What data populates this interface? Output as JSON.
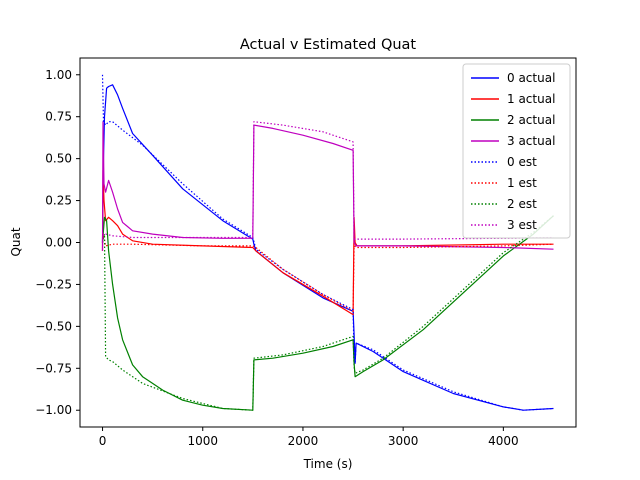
{
  "chart_data": {
    "type": "line",
    "title": "Actual v Estimated Quat",
    "xlabel": "Time (s)",
    "ylabel": "Quat",
    "xlim": [
      -225,
      4725
    ],
    "ylim": [
      -1.1,
      1.1
    ],
    "x_ticks": [
      0,
      1000,
      2000,
      3000,
      4000
    ],
    "y_ticks": [
      1.0,
      0.75,
      0.5,
      0.25,
      0.0,
      -0.25,
      -0.5,
      -0.75,
      -1.0
    ],
    "x_tick_labels": [
      "0",
      "1000",
      "2000",
      "3000",
      "4000"
    ],
    "y_tick_labels": [
      "1.00",
      "0.75",
      "0.50",
      "0.25",
      "0.00",
      "−0.25",
      "−0.50",
      "−0.75",
      "−1.00"
    ],
    "grid": false,
    "legend_position": "top-right",
    "series": [
      {
        "name": "0 actual",
        "color": "#0000ff",
        "style": "solid",
        "points": [
          [
            0,
            0.0
          ],
          [
            10,
            0.5
          ],
          [
            20,
            0.75
          ],
          [
            40,
            0.92
          ],
          [
            60,
            0.93
          ],
          [
            100,
            0.94
          ],
          [
            150,
            0.88
          ],
          [
            200,
            0.8
          ],
          [
            300,
            0.65
          ],
          [
            500,
            0.52
          ],
          [
            800,
            0.32
          ],
          [
            1200,
            0.13
          ],
          [
            1500,
            0.02
          ],
          [
            1510,
            -0.01
          ],
          [
            1530,
            -0.05
          ],
          [
            1800,
            -0.18
          ],
          [
            2200,
            -0.33
          ],
          [
            2500,
            -0.41
          ],
          [
            2510,
            -0.55
          ],
          [
            2520,
            -0.72
          ],
          [
            2530,
            -0.6
          ],
          [
            2700,
            -0.65
          ],
          [
            3000,
            -0.77
          ],
          [
            3500,
            -0.9
          ],
          [
            4000,
            -0.98
          ],
          [
            4200,
            -1.0
          ],
          [
            4500,
            -0.99
          ]
        ]
      },
      {
        "name": "1 actual",
        "color": "#ff0000",
        "style": "solid",
        "points": [
          [
            0,
            -0.05
          ],
          [
            5,
            0.43
          ],
          [
            15,
            0.25
          ],
          [
            30,
            0.13
          ],
          [
            60,
            0.15
          ],
          [
            100,
            0.13
          ],
          [
            150,
            0.1
          ],
          [
            200,
            0.05
          ],
          [
            300,
            0.01
          ],
          [
            500,
            -0.01
          ],
          [
            1000,
            -0.02
          ],
          [
            1500,
            -0.03
          ],
          [
            1530,
            -0.05
          ],
          [
            1800,
            -0.18
          ],
          [
            2200,
            -0.32
          ],
          [
            2500,
            -0.43
          ],
          [
            2510,
            0.15
          ],
          [
            2520,
            0.0
          ],
          [
            2540,
            -0.02
          ],
          [
            3000,
            -0.02
          ],
          [
            4000,
            -0.01
          ],
          [
            4500,
            -0.01
          ]
        ]
      },
      {
        "name": "2 actual",
        "color": "#008000",
        "style": "solid",
        "points": [
          [
            0,
            0.0
          ],
          [
            20,
            0.15
          ],
          [
            40,
            0.13
          ],
          [
            60,
            -0.05
          ],
          [
            100,
            -0.25
          ],
          [
            150,
            -0.45
          ],
          [
            200,
            -0.58
          ],
          [
            300,
            -0.73
          ],
          [
            400,
            -0.8
          ],
          [
            600,
            -0.88
          ],
          [
            800,
            -0.94
          ],
          [
            1000,
            -0.97
          ],
          [
            1200,
            -0.99
          ],
          [
            1500,
            -1.0
          ],
          [
            1510,
            -0.7
          ],
          [
            1700,
            -0.69
          ],
          [
            2000,
            -0.66
          ],
          [
            2300,
            -0.62
          ],
          [
            2500,
            -0.58
          ],
          [
            2510,
            -0.72
          ],
          [
            2520,
            -0.8
          ],
          [
            2600,
            -0.77
          ],
          [
            2800,
            -0.7
          ],
          [
            3200,
            -0.52
          ],
          [
            3600,
            -0.3
          ],
          [
            4000,
            -0.08
          ],
          [
            4300,
            0.05
          ],
          [
            4500,
            0.16
          ]
        ]
      },
      {
        "name": "3 actual",
        "color": "#bf00bf",
        "style": "solid",
        "points": [
          [
            0,
            -0.05
          ],
          [
            5,
            0.72
          ],
          [
            15,
            0.35
          ],
          [
            30,
            0.3
          ],
          [
            60,
            0.37
          ],
          [
            100,
            0.3
          ],
          [
            150,
            0.2
          ],
          [
            200,
            0.12
          ],
          [
            300,
            0.07
          ],
          [
            500,
            0.05
          ],
          [
            800,
            0.03
          ],
          [
            1200,
            0.025
          ],
          [
            1500,
            0.025
          ],
          [
            1510,
            0.7
          ],
          [
            1700,
            0.68
          ],
          [
            2000,
            0.64
          ],
          [
            2300,
            0.59
          ],
          [
            2500,
            0.55
          ],
          [
            2510,
            0.0
          ],
          [
            2530,
            -0.02
          ],
          [
            3000,
            -0.02
          ],
          [
            4000,
            -0.03
          ],
          [
            4500,
            -0.04
          ]
        ]
      },
      {
        "name": "0 est",
        "color": "#0000ff",
        "style": "dotted",
        "points": [
          [
            0,
            1.0
          ],
          [
            10,
            0.72
          ],
          [
            30,
            0.7
          ],
          [
            60,
            0.72
          ],
          [
            100,
            0.72
          ],
          [
            200,
            0.67
          ],
          [
            400,
            0.58
          ],
          [
            800,
            0.35
          ],
          [
            1200,
            0.14
          ],
          [
            1500,
            0.03
          ],
          [
            1530,
            -0.04
          ],
          [
            1800,
            -0.16
          ],
          [
            2200,
            -0.31
          ],
          [
            2500,
            -0.4
          ],
          [
            2510,
            -0.68
          ],
          [
            2520,
            -0.72
          ],
          [
            2530,
            -0.6
          ],
          [
            2700,
            -0.64
          ],
          [
            3000,
            -0.76
          ],
          [
            3500,
            -0.89
          ],
          [
            4000,
            -0.98
          ],
          [
            4200,
            -1.0
          ],
          [
            4500,
            -0.99
          ]
        ]
      },
      {
        "name": "1 est",
        "color": "#ff0000",
        "style": "dotted",
        "points": [
          [
            0,
            0.0
          ],
          [
            10,
            0.05
          ],
          [
            30,
            -0.02
          ],
          [
            100,
            -0.01
          ],
          [
            300,
            -0.01
          ],
          [
            1000,
            -0.02
          ],
          [
            1500,
            -0.02
          ],
          [
            1530,
            -0.03
          ],
          [
            1800,
            -0.16
          ],
          [
            2200,
            -0.31
          ],
          [
            2500,
            -0.41
          ],
          [
            2510,
            -0.02
          ],
          [
            2540,
            -0.03
          ],
          [
            3000,
            -0.03
          ],
          [
            4000,
            -0.02
          ],
          [
            4500,
            -0.01
          ]
        ]
      },
      {
        "name": "2 est",
        "color": "#008000",
        "style": "dotted",
        "points": [
          [
            0,
            0.0
          ],
          [
            20,
            0.05
          ],
          [
            30,
            -0.68
          ],
          [
            60,
            -0.7
          ],
          [
            100,
            -0.71
          ],
          [
            200,
            -0.76
          ],
          [
            400,
            -0.84
          ],
          [
            800,
            -0.93
          ],
          [
            1200,
            -0.99
          ],
          [
            1500,
            -1.0
          ],
          [
            1510,
            -0.69
          ],
          [
            1800,
            -0.67
          ],
          [
            2200,
            -0.62
          ],
          [
            2500,
            -0.56
          ],
          [
            2510,
            -0.74
          ],
          [
            2520,
            -0.78
          ],
          [
            2600,
            -0.76
          ],
          [
            2800,
            -0.69
          ],
          [
            3200,
            -0.5
          ],
          [
            3600,
            -0.28
          ],
          [
            4000,
            -0.06
          ],
          [
            4300,
            0.06
          ],
          [
            4500,
            0.16
          ]
        ]
      },
      {
        "name": "3 est",
        "color": "#bf00bf",
        "style": "dotted",
        "points": [
          [
            0,
            0.0
          ],
          [
            10,
            0.05
          ],
          [
            30,
            0.05
          ],
          [
            100,
            0.04
          ],
          [
            300,
            0.03
          ],
          [
            800,
            0.03
          ],
          [
            1500,
            0.03
          ],
          [
            1510,
            0.72
          ],
          [
            1800,
            0.7
          ],
          [
            2200,
            0.66
          ],
          [
            2500,
            0.6
          ],
          [
            2510,
            0.02
          ],
          [
            3000,
            0.02
          ],
          [
            4000,
            0.025
          ],
          [
            4500,
            0.03
          ]
        ]
      }
    ]
  }
}
